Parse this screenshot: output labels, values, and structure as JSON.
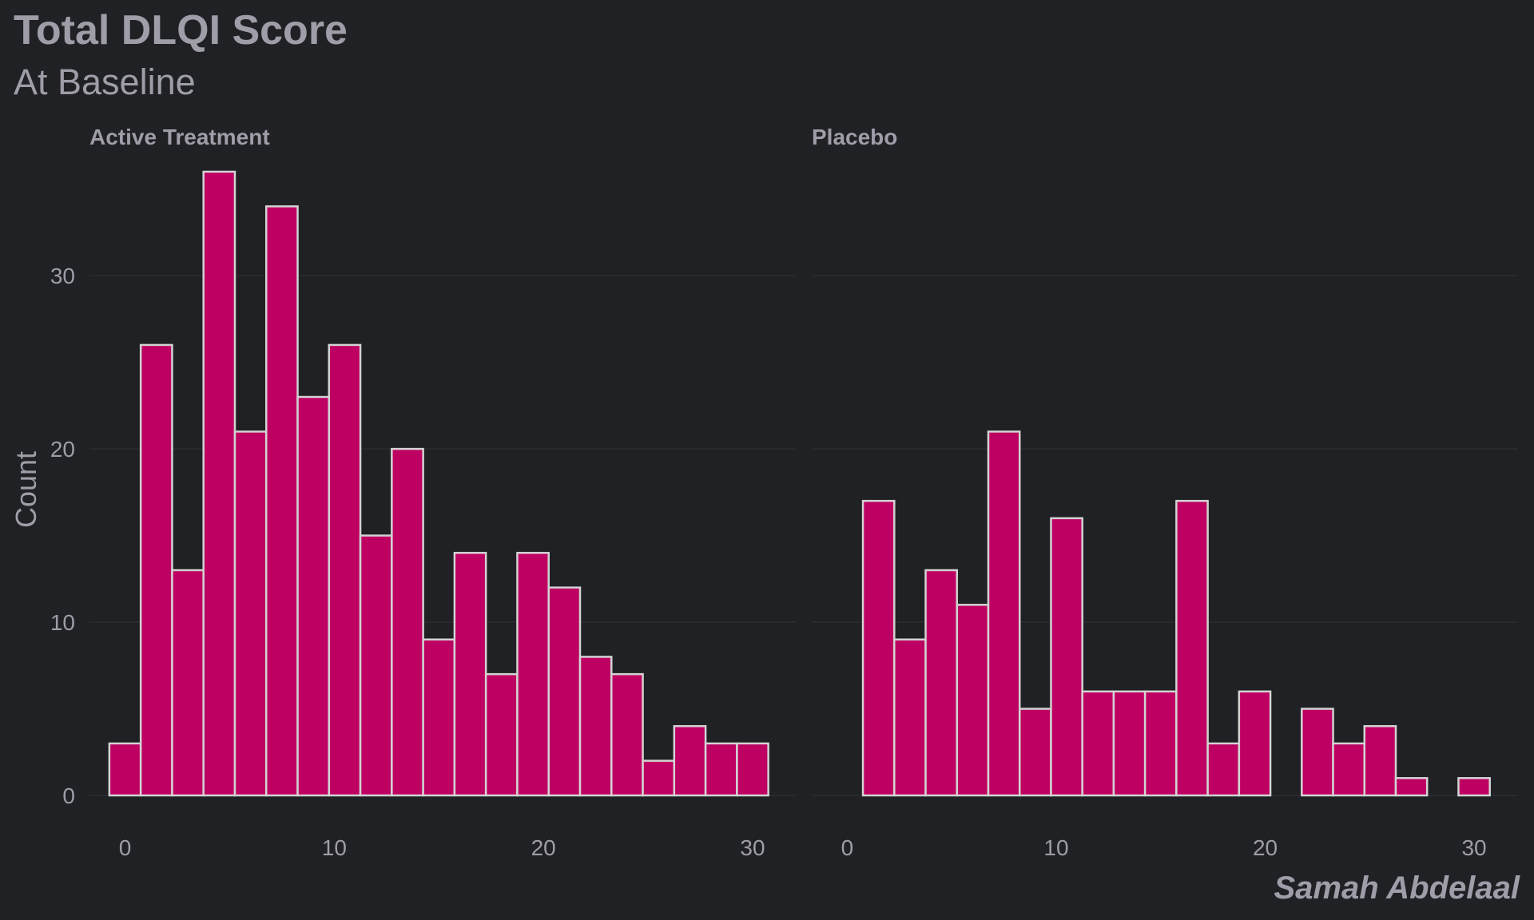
{
  "colors": {
    "background": "#202124",
    "bar_fill": "#BE0062",
    "bar_stroke": "#D3D3D3",
    "text": "#9E9DA8",
    "grid": "#2C2D30"
  },
  "caption": "Samah Abdelaal",
  "chart_data": {
    "type": "bar",
    "title": "Total DLQI Score",
    "subtitle": "At Baseline",
    "xlabel": "",
    "ylabel": "Count",
    "xlim": [
      -1.7,
      32.1
    ],
    "ylim": [
      0,
      36
    ],
    "x_ticks": [
      0,
      10,
      20,
      30
    ],
    "y_ticks": [
      0,
      10,
      20,
      30
    ],
    "grid": true,
    "bin_width": 1.5,
    "bin_centers": [
      0,
      1.5,
      3,
      4.5,
      6,
      7.5,
      9,
      10.5,
      12,
      13.5,
      15,
      16.5,
      18,
      19.5,
      21,
      22.5,
      24,
      25.5,
      27,
      28.5,
      30
    ],
    "panels": [
      {
        "name": "Active Treatment",
        "values": [
          3,
          26,
          13,
          36,
          21,
          34,
          23,
          26,
          15,
          20,
          9,
          14,
          7,
          14,
          12,
          8,
          7,
          2,
          4,
          3,
          3
        ]
      },
      {
        "name": "Placebo",
        "values": [
          0,
          17,
          9,
          13,
          11,
          21,
          5,
          16,
          6,
          6,
          6,
          17,
          3,
          6,
          0,
          5,
          3,
          4,
          1,
          0,
          1
        ]
      }
    ]
  }
}
